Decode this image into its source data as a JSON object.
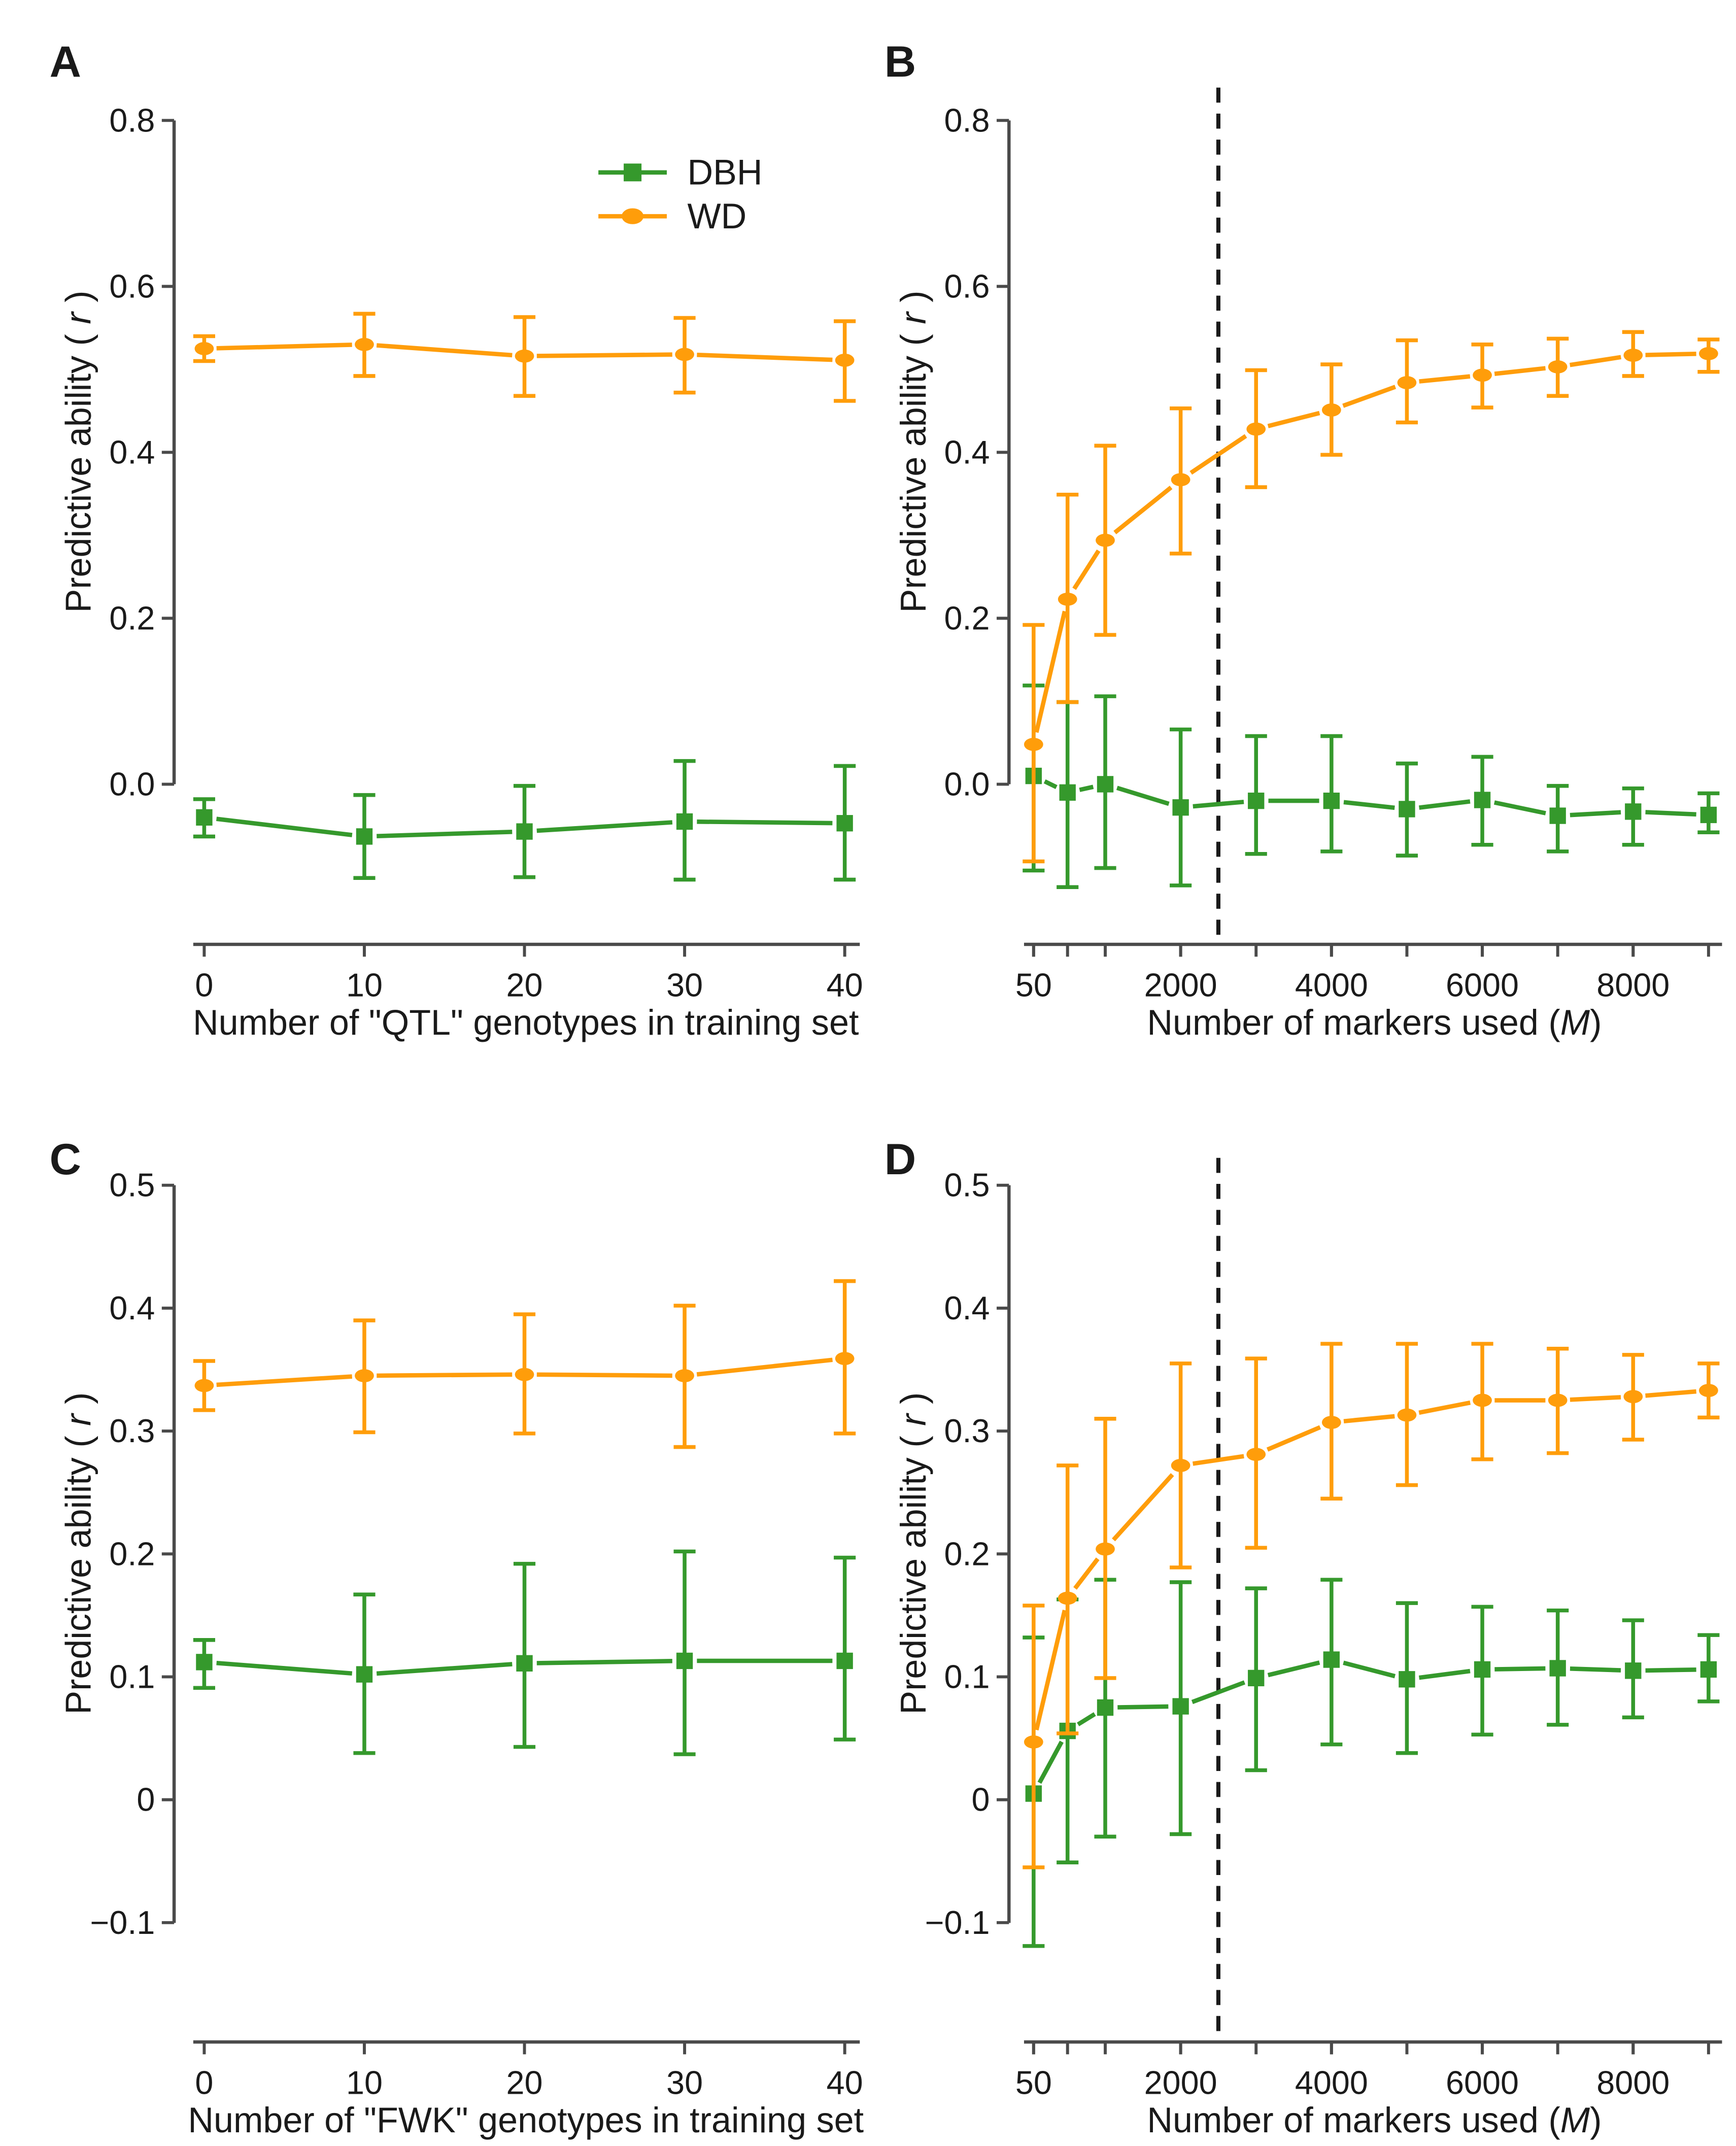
{
  "figure": {
    "background": "#ffffff"
  },
  "colors": {
    "dbh": "#35992C",
    "wd": "#FF9D0A",
    "axis": "#4a4a4a",
    "text": "#1a1a1a",
    "dashed": "#1a1a1a"
  },
  "legend": {
    "items": [
      {
        "series": "DBH",
        "label": "DBH",
        "marker": "square"
      },
      {
        "series": "WD",
        "label": "WD",
        "marker": "circle"
      }
    ]
  },
  "chart_data": [
    {
      "id": "A",
      "panel_label": "A",
      "type": "line",
      "xlabel_prefix": "Number of \"QTL\" genotypes in training set",
      "xlabel_em": "",
      "xlabel_suffix": "",
      "ylabel_prefix": "Predictive ability ( ",
      "ylabel_em": "r",
      "ylabel_suffix": " )",
      "x": [
        0,
        10,
        20,
        30,
        40
      ],
      "x_ticks": [
        {
          "v": 0,
          "label": "0"
        },
        {
          "v": 10,
          "label": "10"
        },
        {
          "v": 20,
          "label": "20"
        },
        {
          "v": 30,
          "label": "30"
        },
        {
          "v": 40,
          "label": "40"
        }
      ],
      "y_ticks": [
        {
          "v": 0.0,
          "label": "0.0"
        },
        {
          "v": 0.2,
          "label": "0.2"
        },
        {
          "v": 0.4,
          "label": "0.4"
        },
        {
          "v": 0.6,
          "label": "0.6"
        },
        {
          "v": 0.8,
          "label": "0.8"
        }
      ],
      "ylim": [
        -0.19,
        0.84
      ],
      "dashed_x": null,
      "tick_all_x": false,
      "has_legend": true,
      "series": [
        {
          "name": "DBH",
          "marker": "square",
          "values": [
            -0.04,
            -0.063,
            -0.057,
            -0.045,
            -0.047
          ],
          "lo": [
            -0.063,
            -0.113,
            -0.112,
            -0.115,
            -0.115
          ],
          "hi": [
            -0.018,
            -0.013,
            -0.002,
            0.028,
            0.022
          ]
        },
        {
          "name": "WD",
          "marker": "circle",
          "values": [
            0.525,
            0.53,
            0.516,
            0.518,
            0.511
          ],
          "lo": [
            0.51,
            0.492,
            0.468,
            0.472,
            0.462
          ],
          "hi": [
            0.54,
            0.567,
            0.563,
            0.562,
            0.558
          ]
        }
      ]
    },
    {
      "id": "B",
      "panel_label": "B",
      "type": "line",
      "xlabel_prefix": "Number of markers used (",
      "xlabel_em": "M",
      "xlabel_suffix": ")",
      "ylabel_prefix": "Predictive ability ( ",
      "ylabel_em": "r",
      "ylabel_suffix": " )",
      "x": [
        50,
        500,
        1000,
        2000,
        3000,
        4000,
        5000,
        6000,
        7000,
        8000,
        9000
      ],
      "x_ticks": [
        {
          "v": 50,
          "label": "50"
        },
        {
          "v": 2000,
          "label": "2000"
        },
        {
          "v": 4000,
          "label": "4000"
        },
        {
          "v": 6000,
          "label": "6000"
        },
        {
          "v": 8000,
          "label": "8000"
        }
      ],
      "y_ticks": [
        {
          "v": 0.0,
          "label": "0.0"
        },
        {
          "v": 0.2,
          "label": "0.2"
        },
        {
          "v": 0.4,
          "label": "0.4"
        },
        {
          "v": 0.6,
          "label": "0.6"
        },
        {
          "v": 0.8,
          "label": "0.8"
        }
      ],
      "ylim": [
        -0.19,
        0.84
      ],
      "dashed_x": 2500,
      "tick_all_x": true,
      "has_legend": false,
      "series": [
        {
          "name": "DBH",
          "marker": "square",
          "values": [
            0.01,
            -0.01,
            0.0,
            -0.028,
            -0.02,
            -0.02,
            -0.03,
            -0.019,
            -0.038,
            -0.033,
            -0.037
          ],
          "lo": [
            -0.104,
            -0.124,
            -0.101,
            -0.122,
            -0.084,
            -0.081,
            -0.086,
            -0.073,
            -0.081,
            -0.073,
            -0.058
          ],
          "hi": [
            0.119,
            0.099,
            0.106,
            0.066,
            0.058,
            0.058,
            0.025,
            0.033,
            -0.002,
            -0.005,
            -0.011
          ]
        },
        {
          "name": "WD",
          "marker": "circle",
          "values": [
            0.048,
            0.223,
            0.294,
            0.367,
            0.428,
            0.451,
            0.484,
            0.493,
            0.503,
            0.517,
            0.519
          ],
          "lo": [
            -0.093,
            0.099,
            0.18,
            0.278,
            0.358,
            0.397,
            0.436,
            0.454,
            0.468,
            0.492,
            0.497
          ],
          "hi": [
            0.192,
            0.349,
            0.408,
            0.453,
            0.499,
            0.506,
            0.535,
            0.53,
            0.537,
            0.545,
            0.536
          ]
        }
      ]
    },
    {
      "id": "C",
      "panel_label": "C",
      "type": "line",
      "xlabel_prefix": "Number of \"FWK\" genotypes in training set",
      "xlabel_em": "",
      "xlabel_suffix": "",
      "ylabel_prefix": "Predictive ability ( ",
      "ylabel_em": "r",
      "ylabel_suffix": " )",
      "x": [
        0,
        10,
        20,
        30,
        40
      ],
      "x_ticks": [
        {
          "v": 0,
          "label": "0"
        },
        {
          "v": 10,
          "label": "10"
        },
        {
          "v": 20,
          "label": "20"
        },
        {
          "v": 30,
          "label": "30"
        },
        {
          "v": 40,
          "label": "40"
        }
      ],
      "y_ticks": [
        {
          "v": -0.1,
          "label": "−0.1"
        },
        {
          "v": 0,
          "label": "0"
        },
        {
          "v": 0.1,
          "label": "0.1"
        },
        {
          "v": 0.2,
          "label": "0.2"
        },
        {
          "v": 0.3,
          "label": "0.3"
        },
        {
          "v": 0.4,
          "label": "0.4"
        },
        {
          "v": 0.5,
          "label": "0.5"
        }
      ],
      "ylim": [
        -0.2,
        0.53
      ],
      "dashed_x": null,
      "tick_all_x": false,
      "has_legend": false,
      "series": [
        {
          "name": "DBH",
          "marker": "square",
          "values": [
            0.112,
            0.102,
            0.111,
            0.113,
            0.113
          ],
          "lo": [
            0.091,
            0.038,
            0.043,
            0.037,
            0.049
          ],
          "hi": [
            0.13,
            0.167,
            0.192,
            0.202,
            0.197
          ]
        },
        {
          "name": "WD",
          "marker": "circle",
          "values": [
            0.337,
            0.345,
            0.346,
            0.345,
            0.359
          ],
          "lo": [
            0.317,
            0.299,
            0.298,
            0.287,
            0.298
          ],
          "hi": [
            0.357,
            0.39,
            0.395,
            0.402,
            0.422
          ]
        }
      ]
    },
    {
      "id": "D",
      "panel_label": "D",
      "type": "line",
      "xlabel_prefix": "Number of markers used (",
      "xlabel_em": "M",
      "xlabel_suffix": ")",
      "ylabel_prefix": "Predictive ability ( ",
      "ylabel_em": "r",
      "ylabel_suffix": " )",
      "x": [
        50,
        500,
        1000,
        2000,
        3000,
        4000,
        5000,
        6000,
        7000,
        8000,
        9000
      ],
      "x_ticks": [
        {
          "v": 50,
          "label": "50"
        },
        {
          "v": 2000,
          "label": "2000"
        },
        {
          "v": 4000,
          "label": "4000"
        },
        {
          "v": 6000,
          "label": "6000"
        },
        {
          "v": 8000,
          "label": "8000"
        }
      ],
      "y_ticks": [
        {
          "v": -0.1,
          "label": "−0.1"
        },
        {
          "v": 0,
          "label": "0"
        },
        {
          "v": 0.1,
          "label": "0.1"
        },
        {
          "v": 0.2,
          "label": "0.2"
        },
        {
          "v": 0.3,
          "label": "0.3"
        },
        {
          "v": 0.4,
          "label": "0.4"
        },
        {
          "v": 0.5,
          "label": "0.5"
        }
      ],
      "ylim": [
        -0.2,
        0.53
      ],
      "dashed_x": 2500,
      "tick_all_x": true,
      "has_legend": false,
      "series": [
        {
          "name": "DBH",
          "marker": "square",
          "values": [
            0.005,
            0.056,
            0.075,
            0.076,
            0.099,
            0.114,
            0.098,
            0.106,
            0.107,
            0.105,
            0.106
          ],
          "lo": [
            -0.119,
            -0.051,
            -0.03,
            -0.028,
            0.024,
            0.045,
            0.038,
            0.053,
            0.061,
            0.067,
            0.08
          ],
          "hi": [
            0.132,
            0.163,
            0.179,
            0.177,
            0.172,
            0.179,
            0.16,
            0.157,
            0.154,
            0.146,
            0.134
          ]
        },
        {
          "name": "WD",
          "marker": "circle",
          "values": [
            0.047,
            0.164,
            0.204,
            0.272,
            0.281,
            0.307,
            0.313,
            0.325,
            0.325,
            0.328,
            0.333
          ],
          "lo": [
            -0.055,
            0.054,
            0.099,
            0.189,
            0.205,
            0.245,
            0.256,
            0.277,
            0.282,
            0.293,
            0.311
          ],
          "hi": [
            0.158,
            0.272,
            0.31,
            0.355,
            0.359,
            0.371,
            0.371,
            0.371,
            0.367,
            0.362,
            0.355
          ]
        }
      ]
    }
  ]
}
